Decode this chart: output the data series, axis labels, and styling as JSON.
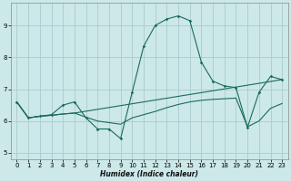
{
  "background_color": "#cce8e8",
  "grid_color": "#aacccc",
  "line_color": "#1a6b5a",
  "xlabel": "Humidex (Indice chaleur)",
  "xlim": [
    -0.5,
    23.5
  ],
  "ylim": [
    4.8,
    9.7
  ],
  "yticks": [
    5,
    6,
    7,
    8,
    9
  ],
  "xticks": [
    0,
    1,
    2,
    3,
    4,
    5,
    6,
    7,
    8,
    9,
    10,
    11,
    12,
    13,
    14,
    15,
    16,
    17,
    18,
    19,
    20,
    21,
    22,
    23
  ],
  "series1_x": [
    0,
    1,
    2,
    3,
    4,
    5,
    6,
    7,
    8,
    9,
    10,
    11,
    12,
    13,
    14,
    15,
    16,
    17,
    18,
    19,
    20,
    21,
    22,
    23
  ],
  "series1_y": [
    6.6,
    6.1,
    6.15,
    6.2,
    6.5,
    6.6,
    6.1,
    5.75,
    5.75,
    5.45,
    6.9,
    8.35,
    9.0,
    9.2,
    9.3,
    9.15,
    7.85,
    7.25,
    7.1,
    7.05,
    5.8,
    6.9,
    7.4,
    7.3
  ],
  "series2_x": [
    0,
    1,
    2,
    3,
    4,
    5,
    6,
    7,
    8,
    9,
    10,
    11,
    12,
    13,
    14,
    15,
    16,
    17,
    18,
    19,
    20,
    21,
    22,
    23
  ],
  "series2_y": [
    6.6,
    6.1,
    6.15,
    6.18,
    6.22,
    6.25,
    6.12,
    6.0,
    5.95,
    5.9,
    6.1,
    6.2,
    6.3,
    6.42,
    6.52,
    6.6,
    6.65,
    6.68,
    6.7,
    6.72,
    5.82,
    6.0,
    6.4,
    6.55
  ],
  "series3_x": [
    0,
    1,
    2,
    3,
    4,
    5,
    23
  ],
  "series3_y": [
    6.6,
    6.1,
    6.15,
    6.18,
    6.22,
    6.25,
    7.3
  ]
}
